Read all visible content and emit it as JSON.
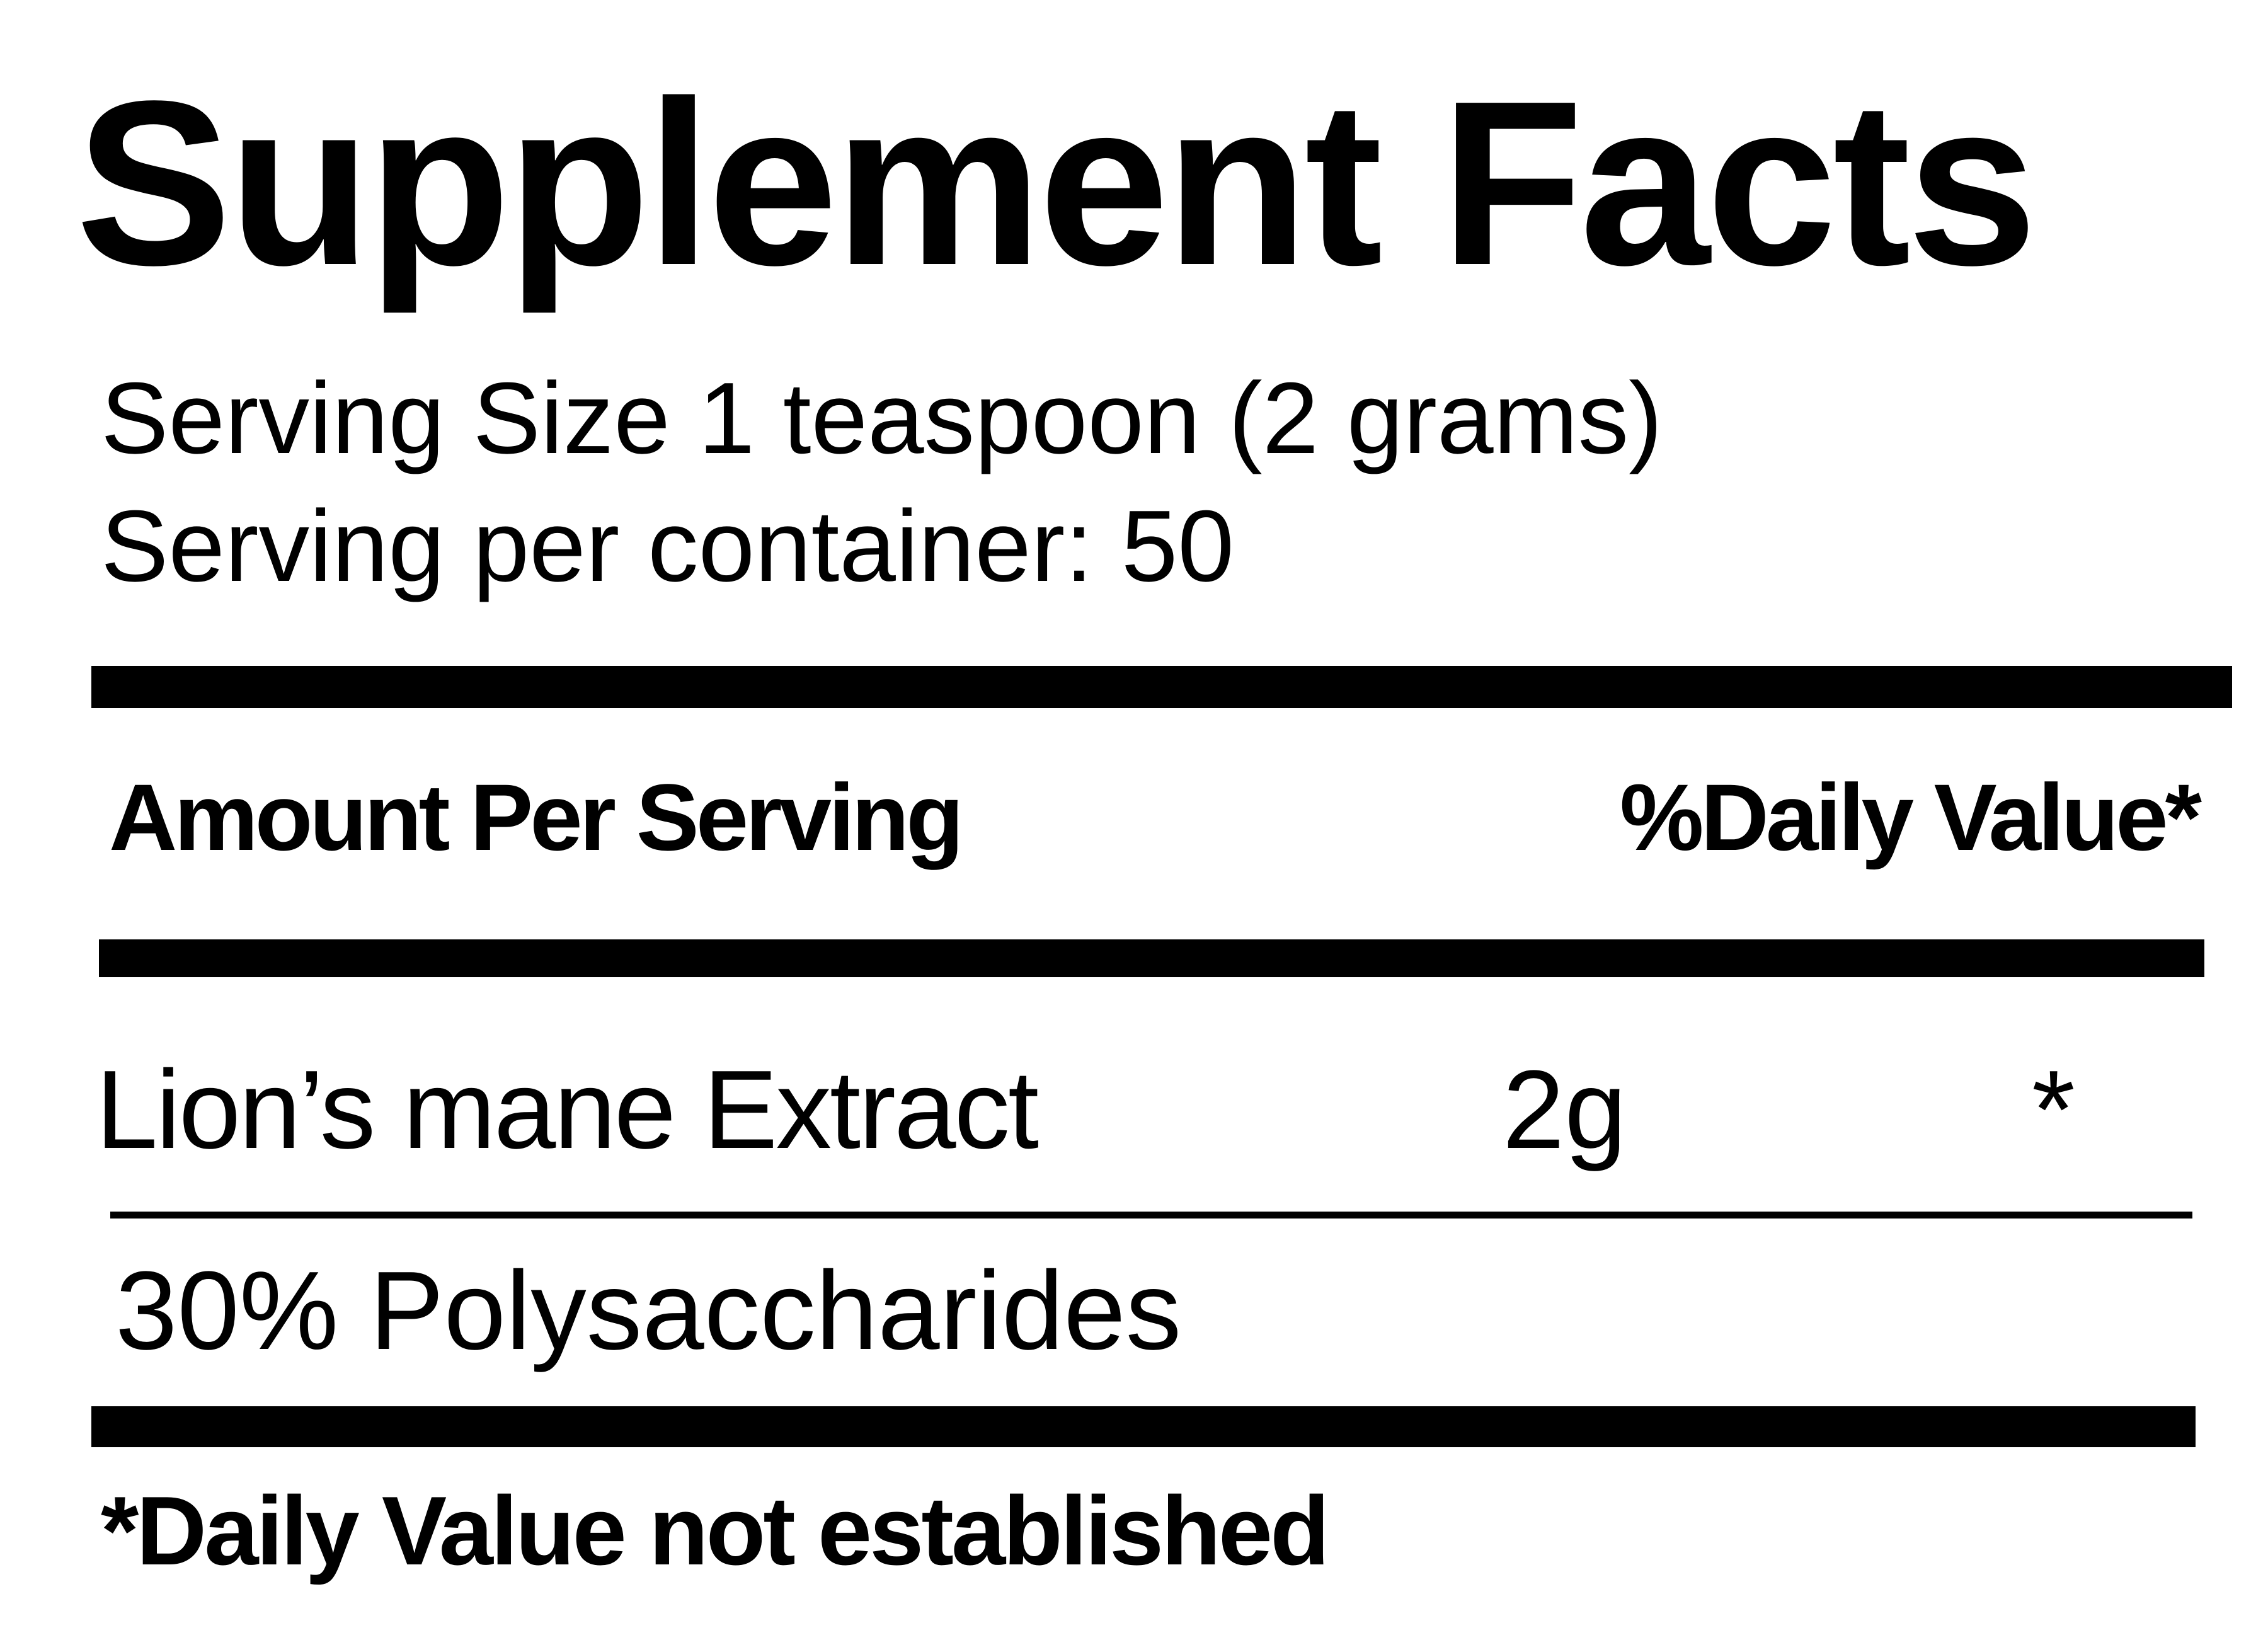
{
  "title": "Supplement Facts",
  "serving_size": "Serving Size 1 teaspoon (2 grams)",
  "servings_per_container": "Serving per container: 50",
  "header": {
    "amount_label": "Amount Per Serving",
    "daily_value_label": "%Daily Value*"
  },
  "ingredients": [
    {
      "name": "Lion’s mane Extract",
      "amount": "2g",
      "daily_value": "*"
    }
  ],
  "sub_ingredient": "30% Polysaccharides",
  "footnote": "*Daily Value not established"
}
